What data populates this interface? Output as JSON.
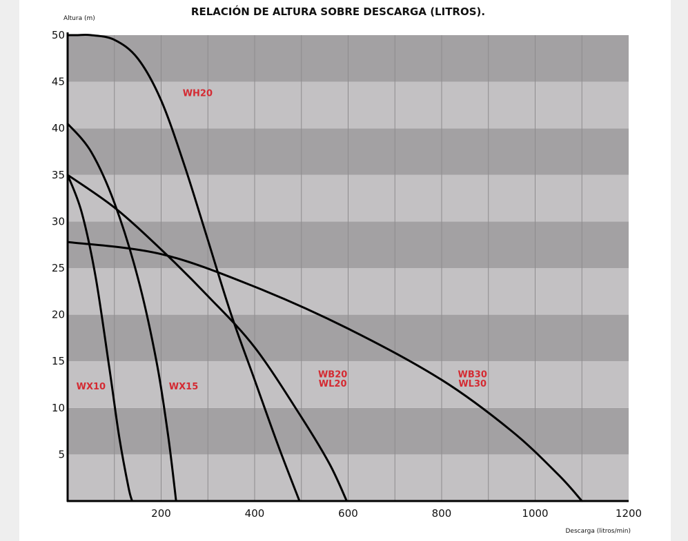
{
  "chart_data": {
    "type": "line",
    "title": "RELACIÓN DE ALTURA SOBRE DESCARGA (LITROS).",
    "xlabel": "Descarga (litros/min)",
    "ylabel": "Altura (m)",
    "xlim": [
      0,
      1200
    ],
    "ylim": [
      0,
      50
    ],
    "x_ticks": [
      200,
      400,
      600,
      800,
      1000,
      1200
    ],
    "x_tick_labels": [
      "200",
      "400",
      "600",
      "800",
      "1000",
      "1200"
    ],
    "y_ticks": [
      5,
      10,
      15,
      20,
      25,
      30,
      35,
      40,
      45,
      50
    ],
    "y_tick_labels": [
      "5",
      "10",
      "15",
      "20",
      "25",
      "30",
      "35",
      "40",
      "45",
      "50"
    ],
    "grid": "vertical lines every 100; alternating dark/light horizontal bands every 5",
    "band_colors": [
      "#c3c1c3",
      "#a3a1a3"
    ],
    "line_color": "#000000",
    "label_color": "#d42a32",
    "series": [
      {
        "name": "WX10",
        "label_lines": [
          "WX10"
        ],
        "label_at": [
          50,
          12.3
        ],
        "x": [
          0,
          30,
          60,
          90,
          110,
          130,
          138
        ],
        "y": [
          35,
          31,
          24,
          14,
          7,
          1.5,
          0
        ]
      },
      {
        "name": "WX15",
        "label_lines": [
          "WX15"
        ],
        "label_at": [
          248,
          12.3
        ],
        "x": [
          0,
          50,
          100,
          150,
          190,
          215,
          232
        ],
        "y": [
          40.5,
          37.5,
          32,
          24,
          15,
          7,
          0
        ]
      },
      {
        "name": "WH20",
        "label_lines": [
          "WH20"
        ],
        "label_at": [
          278,
          43.8
        ],
        "x": [
          0,
          20,
          50,
          100,
          150,
          200,
          250,
          300,
          350,
          400,
          450,
          496
        ],
        "y": [
          50,
          50,
          50,
          49.5,
          47.5,
          43,
          36,
          28,
          20,
          13,
          6,
          0
        ]
      },
      {
        "name": "WB20 / WL20",
        "label_lines": [
          "WB20",
          "WL20"
        ],
        "label_at": [
          567,
          13.1
        ],
        "x": [
          0,
          100,
          200,
          300,
          400,
          500,
          560,
          597
        ],
        "y": [
          35,
          31.5,
          27,
          22,
          16.5,
          9,
          4,
          0
        ]
      },
      {
        "name": "WB30 / WL30",
        "label_lines": [
          "WB30",
          "WL30"
        ],
        "label_at": [
          866,
          13.1
        ],
        "x": [
          0,
          200,
          400,
          600,
          800,
          950,
          1050,
          1100
        ],
        "y": [
          27.8,
          26.5,
          23,
          18.5,
          13,
          7.5,
          2.8,
          0
        ]
      }
    ]
  }
}
